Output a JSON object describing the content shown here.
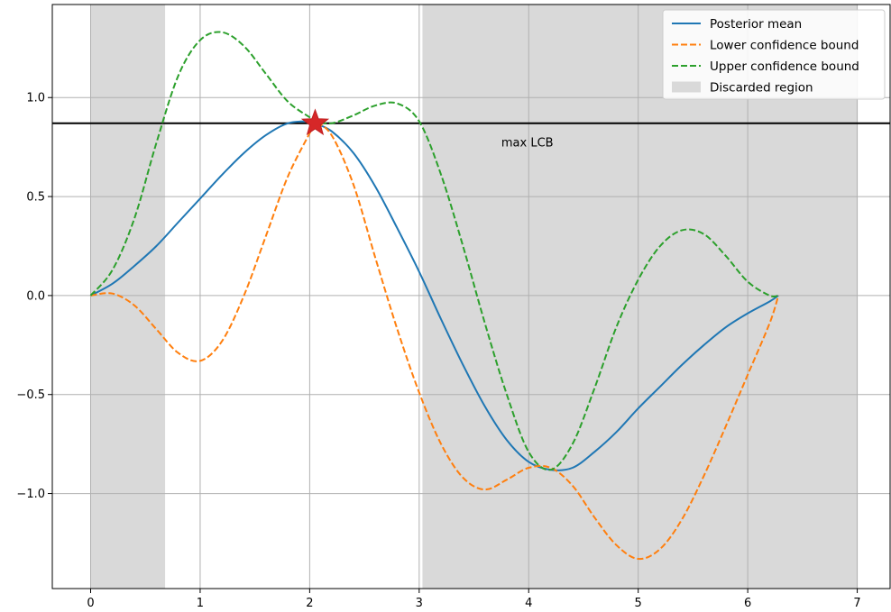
{
  "chart_data": {
    "type": "line",
    "title": "",
    "xlabel": "",
    "ylabel": "",
    "xlim": [
      -0.35,
      7.3
    ],
    "ylim": [
      -1.48,
      1.47
    ],
    "grid": true,
    "legend_position": "top-right",
    "x_ticks": [
      0,
      1,
      2,
      3,
      4,
      5,
      6,
      7
    ],
    "x_tick_labels": [
      "0",
      "1",
      "2",
      "3",
      "4",
      "5",
      "6",
      "7"
    ],
    "y_ticks": [
      1.0,
      0.5,
      0.0,
      -0.5,
      -1.0
    ],
    "y_tick_labels": [
      "1.0",
      "0.5",
      "0.0",
      "−0.5",
      "−1.0"
    ],
    "x": [
      0,
      0.2,
      0.4,
      0.6,
      0.8,
      1.0,
      1.2,
      1.4,
      1.6,
      1.8,
      2.0,
      2.05,
      2.2,
      2.4,
      2.6,
      2.8,
      3.0,
      3.2,
      3.4,
      3.6,
      3.8,
      4.0,
      4.2,
      4.4,
      4.6,
      4.8,
      5.0,
      5.2,
      5.4,
      5.6,
      5.8,
      6.0,
      6.2,
      6.28
    ],
    "series": [
      {
        "name": "Posterior mean",
        "style": "solid",
        "color": "#1f77b4",
        "values": [
          0.0,
          0.06,
          0.15,
          0.25,
          0.37,
          0.49,
          0.61,
          0.72,
          0.81,
          0.87,
          0.88,
          0.87,
          0.83,
          0.72,
          0.55,
          0.34,
          0.12,
          -0.12,
          -0.35,
          -0.56,
          -0.73,
          -0.84,
          -0.88,
          -0.87,
          -0.79,
          -0.69,
          -0.57,
          -0.46,
          -0.35,
          -0.25,
          -0.16,
          -0.09,
          -0.03,
          0.0
        ]
      },
      {
        "name": "Lower confidence bound",
        "style": "dashed",
        "color": "#ff7f0e",
        "values": [
          0.0,
          0.01,
          -0.05,
          -0.17,
          -0.29,
          -0.33,
          -0.23,
          0.0,
          0.3,
          0.6,
          0.82,
          0.87,
          0.81,
          0.56,
          0.19,
          -0.17,
          -0.49,
          -0.75,
          -0.92,
          -0.98,
          -0.93,
          -0.87,
          -0.87,
          -0.96,
          -1.12,
          -1.26,
          -1.33,
          -1.28,
          -1.13,
          -0.91,
          -0.66,
          -0.4,
          -0.14,
          0.0
        ]
      },
      {
        "name": "Upper confidence bound",
        "style": "dashed",
        "color": "#2ca02c",
        "values": [
          0.0,
          0.13,
          0.39,
          0.77,
          1.11,
          1.29,
          1.33,
          1.26,
          1.12,
          0.98,
          0.9,
          0.88,
          0.87,
          0.91,
          0.96,
          0.97,
          0.88,
          0.61,
          0.25,
          -0.14,
          -0.5,
          -0.79,
          -0.88,
          -0.75,
          -0.47,
          -0.16,
          0.08,
          0.25,
          0.33,
          0.31,
          0.2,
          0.07,
          0.0,
          0.0
        ]
      }
    ],
    "discarded_regions": [
      [
        0,
        0.68
      ],
      [
        3.03,
        7.0
      ]
    ],
    "discarded_label": "Discarded region",
    "discarded_color": "#d9d9d9",
    "hline": {
      "y": 0.87,
      "label": "max LCB",
      "label_x": 3.75,
      "label_y": 0.77,
      "color": "#000000"
    },
    "marker": {
      "x": 2.05,
      "y": 0.87,
      "shape": "star",
      "color": "#d62728"
    }
  }
}
